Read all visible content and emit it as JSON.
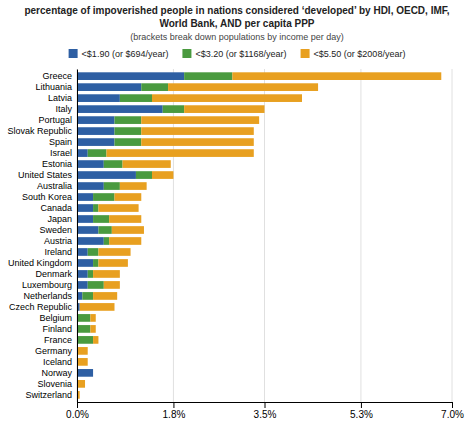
{
  "chart_data": {
    "type": "bar",
    "orientation": "horizontal",
    "stacked": true,
    "title": [
      "percentage of impoverished people in nations considered ‘developed’ by HDI, OECD, IMF,",
      "World Bank, AND per capita PPP"
    ],
    "subtitle": "(brackets break down populations by income per day)",
    "categories": [
      "Greece",
      "Lithuania",
      "Latvia",
      "Italy",
      "Portugal",
      "Slovak Republic",
      "Spain",
      "Israel",
      "Estonia",
      "United States",
      "Australia",
      "South Korea",
      "Canada",
      "Japan",
      "Sweden",
      "Austria",
      "Ireland",
      "United Kingdom",
      "Denmark",
      "Luxembourg",
      "Netherlands",
      "Czech Republic",
      "Belgium",
      "Finland",
      "France",
      "Germany",
      "Iceland",
      "Norway",
      "Slovenia",
      "Switzerland"
    ],
    "series": [
      {
        "name": "<$1.90 (or $694/year)",
        "color": "#2e5fa3",
        "values": [
          2.0,
          1.2,
          0.8,
          1.6,
          0.7,
          0.7,
          0.7,
          0.2,
          0.5,
          1.1,
          0.5,
          0.3,
          0.3,
          0.3,
          0.4,
          0.5,
          0.2,
          0.3,
          0.2,
          0.2,
          0.1,
          0.05,
          0.0,
          0.0,
          0.0,
          0.0,
          0.0,
          0.3,
          0.0,
          0.0
        ]
      },
      {
        "name": "<$3.20 (or $1168/year)",
        "color": "#4a9a3f",
        "values": [
          0.9,
          0.5,
          0.6,
          0.4,
          0.5,
          0.5,
          0.5,
          0.35,
          0.35,
          0.3,
          0.3,
          0.4,
          0.1,
          0.3,
          0.25,
          0.1,
          0.2,
          0.1,
          0.1,
          0.3,
          0.2,
          0.0,
          0.25,
          0.25,
          0.3,
          0.0,
          0.0,
          0.0,
          0.0,
          0.0
        ]
      },
      {
        "name": "<$5.50 (or $2008/year)",
        "color": "#e8a020",
        "values": [
          3.9,
          2.8,
          2.8,
          1.5,
          2.2,
          2.1,
          2.1,
          2.75,
          0.9,
          0.4,
          0.5,
          0.5,
          0.75,
          0.6,
          0.6,
          0.6,
          0.6,
          0.55,
          0.5,
          0.3,
          0.45,
          0.65,
          0.1,
          0.1,
          0.1,
          0.2,
          0.2,
          0.0,
          0.15,
          0.05
        ]
      }
    ],
    "xlim": [
      0,
      7.0
    ],
    "xticks": [
      {
        "value": 0.0,
        "label": "0.0%"
      },
      {
        "value": 1.8,
        "label": "1.8%"
      },
      {
        "value": 3.5,
        "label": "3.5%"
      },
      {
        "value": 5.3,
        "label": "5.3%"
      },
      {
        "value": 7.0,
        "label": "7.0%"
      }
    ],
    "grid": true,
    "legend": "top"
  }
}
